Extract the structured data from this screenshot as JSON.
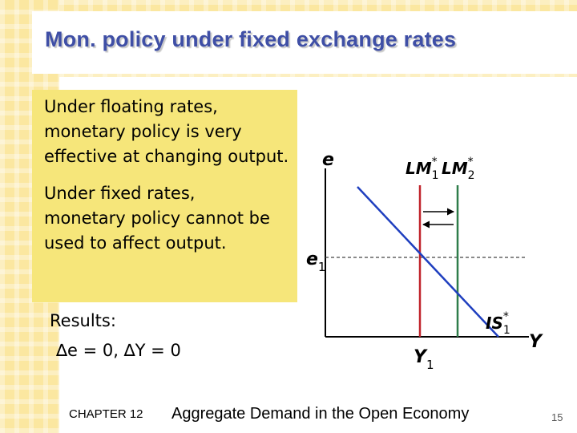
{
  "title": "Mon. policy under fixed exchange rates",
  "notes": [
    "Under floating rates,\nmonetary policy is very\neffective at changing output.",
    "Under fixed rates,\nmonetary policy cannot be\nused to affect output."
  ],
  "results": {
    "label": "Results:",
    "equation": "∆e = 0,  ∆Y  = 0"
  },
  "diagram": {
    "y_axis_label": "e",
    "x_axis_label": "Y",
    "rate_level_label": "e",
    "rate_level_subscript": "1",
    "output_label": "Y",
    "output_subscript": "1",
    "lm1_label": "LM",
    "lm1_sup": "*",
    "lm1_sub": "1",
    "lm2_label": "LM",
    "lm2_sup": "*",
    "lm2_sub": "2",
    "is_label": "IS",
    "is_sup": "*",
    "is_sub": "1",
    "colors": {
      "lm1": "#c0232b",
      "lm2": "#2f7d4a",
      "is": "#1f3fbf",
      "axis": "#000000",
      "dashed": "#444444"
    }
  },
  "footer": {
    "chapter": "CHAPTER 12",
    "subtitle": "Aggregate Demand in the Open Economy",
    "page": "15"
  }
}
